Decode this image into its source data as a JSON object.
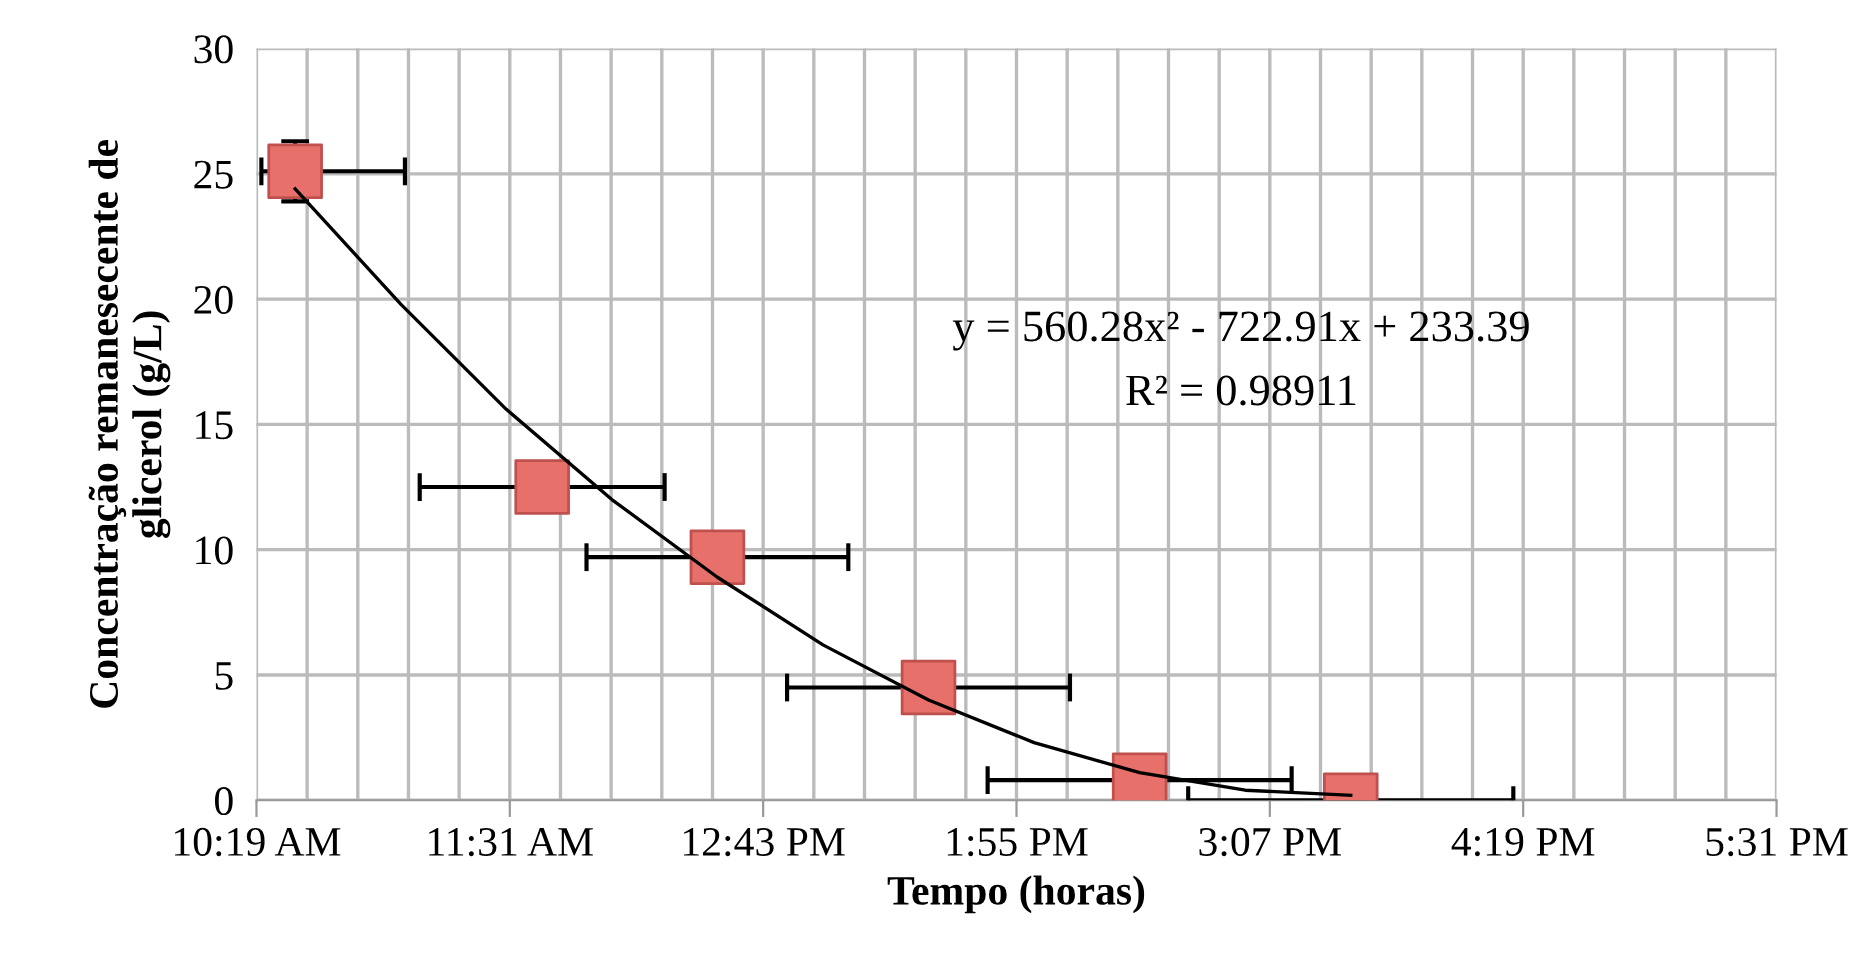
{
  "chart_data": {
    "type": "scatter",
    "xlabel": "Tempo (horas)",
    "ylabel": "Concentração remanesecente de\nglicerol (g/L)",
    "annotations": [
      "y = 560.28x² - 722.91x + 233.39",
      "R² = 0.98911"
    ],
    "series": [
      {
        "color": "#e8706a",
        "marker": "square",
        "x": [
          10.5,
          11.67,
          12.5,
          13.5,
          14.5,
          15.5
        ],
        "values": [
          25.1,
          12.5,
          9.7,
          4.5,
          0.8,
          0.0
        ],
        "xerrors": [
          [
            10.34,
            11.02
          ],
          0.58,
          0.62,
          0.67,
          0.72,
          0.77
        ],
        "errors": [
          1.2,
          null,
          null,
          null,
          null,
          null
        ]
      },
      {
        "type": "line",
        "color": "#000000",
        "marker": "none",
        "x": [
          10.5,
          11.0,
          11.5,
          12.0,
          12.5,
          13.0,
          13.5,
          14.0,
          14.5,
          15.0,
          15.5
        ],
        "values": [
          24.4,
          19.8,
          15.6,
          12.0,
          8.9,
          6.2,
          4.0,
          2.3,
          1.1,
          0.4,
          0.2
        ]
      }
    ],
    "xlim": [
      10.3167,
      17.5167
    ],
    "xticks": [
      {
        "value": 10.3167,
        "label": "10:19 AM"
      },
      {
        "value": 10.5567,
        "label": null
      },
      {
        "value": 10.7967,
        "label": null
      },
      {
        "value": 11.0367,
        "label": null
      },
      {
        "value": 11.2767,
        "label": null
      },
      {
        "value": 11.5167,
        "label": "11:31 AM"
      },
      {
        "value": 11.7567,
        "label": null
      },
      {
        "value": 11.9967,
        "label": null
      },
      {
        "value": 12.2367,
        "label": null
      },
      {
        "value": 12.4767,
        "label": null
      },
      {
        "value": 12.7167,
        "label": "12:43 PM"
      },
      {
        "value": 12.9567,
        "label": null
      },
      {
        "value": 13.1967,
        "label": null
      },
      {
        "value": 13.4367,
        "label": null
      },
      {
        "value": 13.6767,
        "label": null
      },
      {
        "value": 13.9167,
        "label": "1:55 PM"
      },
      {
        "value": 14.1567,
        "label": null
      },
      {
        "value": 14.3967,
        "label": null
      },
      {
        "value": 14.6367,
        "label": null
      },
      {
        "value": 14.8767,
        "label": null
      },
      {
        "value": 15.1167,
        "label": "3:07 PM"
      },
      {
        "value": 15.3567,
        "label": null
      },
      {
        "value": 15.5967,
        "label": null
      },
      {
        "value": 15.8367,
        "label": null
      },
      {
        "value": 16.0767,
        "label": null
      },
      {
        "value": 16.3167,
        "label": "4:19 PM"
      },
      {
        "value": 16.5567,
        "label": null
      },
      {
        "value": 16.7967,
        "label": null
      },
      {
        "value": 17.0367,
        "label": null
      },
      {
        "value": 17.2767,
        "label": null
      },
      {
        "value": 17.5167,
        "label": "5:31 PM"
      }
    ],
    "ylim": [
      0,
      30
    ],
    "yticks": [
      0,
      5,
      10,
      15,
      20,
      25,
      30
    ],
    "grid": true,
    "legend": false
  }
}
